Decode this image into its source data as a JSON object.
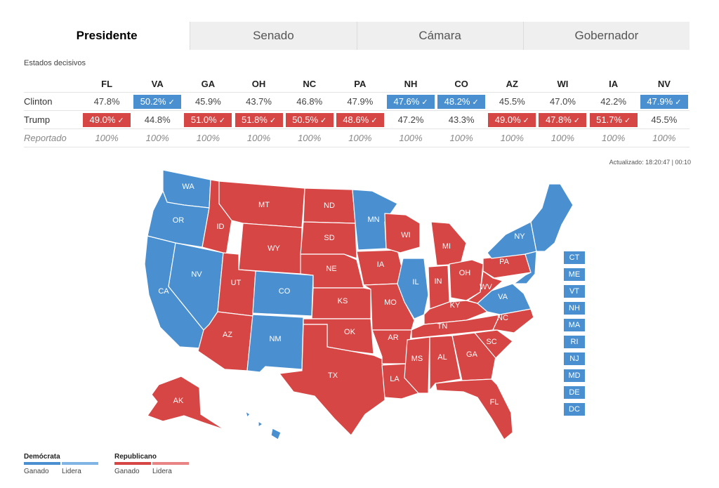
{
  "tabs": [
    "Presidente",
    "Senado",
    "Cámara",
    "Gobernador"
  ],
  "section_label": "Estados decisivos",
  "table": {
    "headers": [
      "FL",
      "VA",
      "GA",
      "OH",
      "NC",
      "PA",
      "NH",
      "CO",
      "AZ",
      "WI",
      "IA",
      "NV"
    ],
    "rows": [
      {
        "name": "Clinton",
        "cells": [
          {
            "v": "47.8%",
            "w": ""
          },
          {
            "v": "50.2%",
            "w": "d"
          },
          {
            "v": "45.9%",
            "w": ""
          },
          {
            "v": "43.7%",
            "w": ""
          },
          {
            "v": "46.8%",
            "w": ""
          },
          {
            "v": "47.9%",
            "w": ""
          },
          {
            "v": "47.6%",
            "w": "d"
          },
          {
            "v": "48.2%",
            "w": "d"
          },
          {
            "v": "45.5%",
            "w": ""
          },
          {
            "v": "47.0%",
            "w": ""
          },
          {
            "v": "42.2%",
            "w": ""
          },
          {
            "v": "47.9%",
            "w": "d"
          }
        ]
      },
      {
        "name": "Trump",
        "cells": [
          {
            "v": "49.0%",
            "w": "r"
          },
          {
            "v": "44.8%",
            "w": ""
          },
          {
            "v": "51.0%",
            "w": "r"
          },
          {
            "v": "51.8%",
            "w": "r"
          },
          {
            "v": "50.5%",
            "w": "r"
          },
          {
            "v": "48.6%",
            "w": "r"
          },
          {
            "v": "47.2%",
            "w": ""
          },
          {
            "v": "43.3%",
            "w": ""
          },
          {
            "v": "49.0%",
            "w": "r"
          },
          {
            "v": "47.8%",
            "w": "r"
          },
          {
            "v": "51.7%",
            "w": "r"
          },
          {
            "v": "45.5%",
            "w": ""
          }
        ]
      }
    ],
    "reported": {
      "name": "Reportado",
      "values": [
        "100%",
        "100%",
        "100%",
        "100%",
        "100%",
        "100%",
        "100%",
        "100%",
        "100%",
        "100%",
        "100%",
        "100%"
      ]
    }
  },
  "updated": "Actualizado: 18:20:47 | 00:10",
  "small_states": [
    "CT",
    "ME",
    "VT",
    "NH",
    "MA",
    "RI",
    "NJ",
    "MD",
    "DE",
    "DC"
  ],
  "legend": {
    "dem": {
      "title": "Demócrata",
      "won": "Ganado",
      "lead": "Lidera",
      "won_color": "#4a90d0",
      "lead_color": "#7fb4e4"
    },
    "rep": {
      "title": "Republicano",
      "won": "Ganado",
      "lead": "Lidera",
      "won_color": "#d54645",
      "lead_color": "#e88584"
    }
  },
  "map_states": [
    {
      "id": "WA",
      "party": "dem"
    },
    {
      "id": "OR",
      "party": "dem"
    },
    {
      "id": "CA",
      "party": "dem"
    },
    {
      "id": "NV",
      "party": "dem"
    },
    {
      "id": "ID",
      "party": "rep"
    },
    {
      "id": "MT",
      "party": "rep"
    },
    {
      "id": "WY",
      "party": "rep"
    },
    {
      "id": "UT",
      "party": "rep"
    },
    {
      "id": "AZ",
      "party": "rep"
    },
    {
      "id": "CO",
      "party": "dem"
    },
    {
      "id": "NM",
      "party": "dem"
    },
    {
      "id": "ND",
      "party": "rep"
    },
    {
      "id": "SD",
      "party": "rep"
    },
    {
      "id": "NE",
      "party": "rep"
    },
    {
      "id": "KS",
      "party": "rep"
    },
    {
      "id": "OK",
      "party": "rep"
    },
    {
      "id": "TX",
      "party": "rep"
    },
    {
      "id": "MN",
      "party": "dem"
    },
    {
      "id": "IA",
      "party": "rep"
    },
    {
      "id": "MO",
      "party": "rep"
    },
    {
      "id": "AR",
      "party": "rep"
    },
    {
      "id": "LA",
      "party": "rep"
    },
    {
      "id": "WI",
      "party": "rep"
    },
    {
      "id": "IL",
      "party": "dem"
    },
    {
      "id": "MI",
      "party": "rep"
    },
    {
      "id": "IN",
      "party": "rep"
    },
    {
      "id": "OH",
      "party": "rep"
    },
    {
      "id": "KY",
      "party": "rep"
    },
    {
      "id": "TN",
      "party": "rep"
    },
    {
      "id": "MS",
      "party": "rep"
    },
    {
      "id": "AL",
      "party": "rep"
    },
    {
      "id": "GA",
      "party": "rep"
    },
    {
      "id": "FL",
      "party": "rep"
    },
    {
      "id": "SC",
      "party": "rep"
    },
    {
      "id": "NC",
      "party": "rep"
    },
    {
      "id": "VA",
      "party": "dem"
    },
    {
      "id": "WV",
      "party": "rep"
    },
    {
      "id": "PA",
      "party": "rep"
    },
    {
      "id": "NY",
      "party": "dem"
    },
    {
      "id": "AK",
      "party": "rep"
    }
  ]
}
